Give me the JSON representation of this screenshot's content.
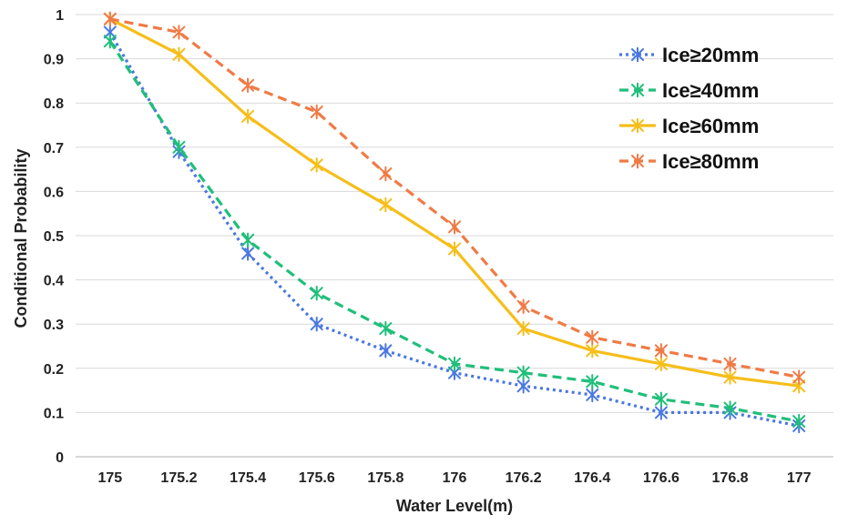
{
  "chart_data": {
    "type": "line",
    "title": "",
    "xlabel": "Water Level(m)",
    "ylabel": "Conditional Probability",
    "categories": [
      "175",
      "175.2",
      "175.4",
      "175.6",
      "175.8",
      "176",
      "176.2",
      "176.4",
      "176.6",
      "176.8",
      "177"
    ],
    "ylim": [
      0,
      1
    ],
    "yticks": [
      "0",
      "0.1",
      "0.2",
      "0.3",
      "0.4",
      "0.5",
      "0.6",
      "0.7",
      "0.8",
      "0.9",
      "1"
    ],
    "grid": true,
    "legend_position": "top-right",
    "series": [
      {
        "name": "Ice≥20mm",
        "color": "#4a78e0",
        "dash": "dotted",
        "values": [
          0.96,
          0.69,
          0.46,
          0.3,
          0.24,
          0.19,
          0.16,
          0.14,
          0.1,
          0.1,
          0.07
        ]
      },
      {
        "name": "Ice≥40mm",
        "color": "#1fbf7a",
        "dash": "dashed",
        "values": [
          0.94,
          0.7,
          0.49,
          0.37,
          0.29,
          0.21,
          0.19,
          0.17,
          0.13,
          0.11,
          0.08
        ]
      },
      {
        "name": "Ice≥60mm",
        "color": "#f5be1a",
        "dash": "solid",
        "values": [
          0.99,
          0.91,
          0.77,
          0.66,
          0.57,
          0.47,
          0.29,
          0.24,
          0.21,
          0.18,
          0.16
        ]
      },
      {
        "name": "Ice≥80mm",
        "color": "#f07a45",
        "dash": "dashed",
        "values": [
          0.99,
          0.96,
          0.84,
          0.78,
          0.64,
          0.52,
          0.34,
          0.27,
          0.24,
          0.21,
          0.18
        ]
      }
    ]
  }
}
